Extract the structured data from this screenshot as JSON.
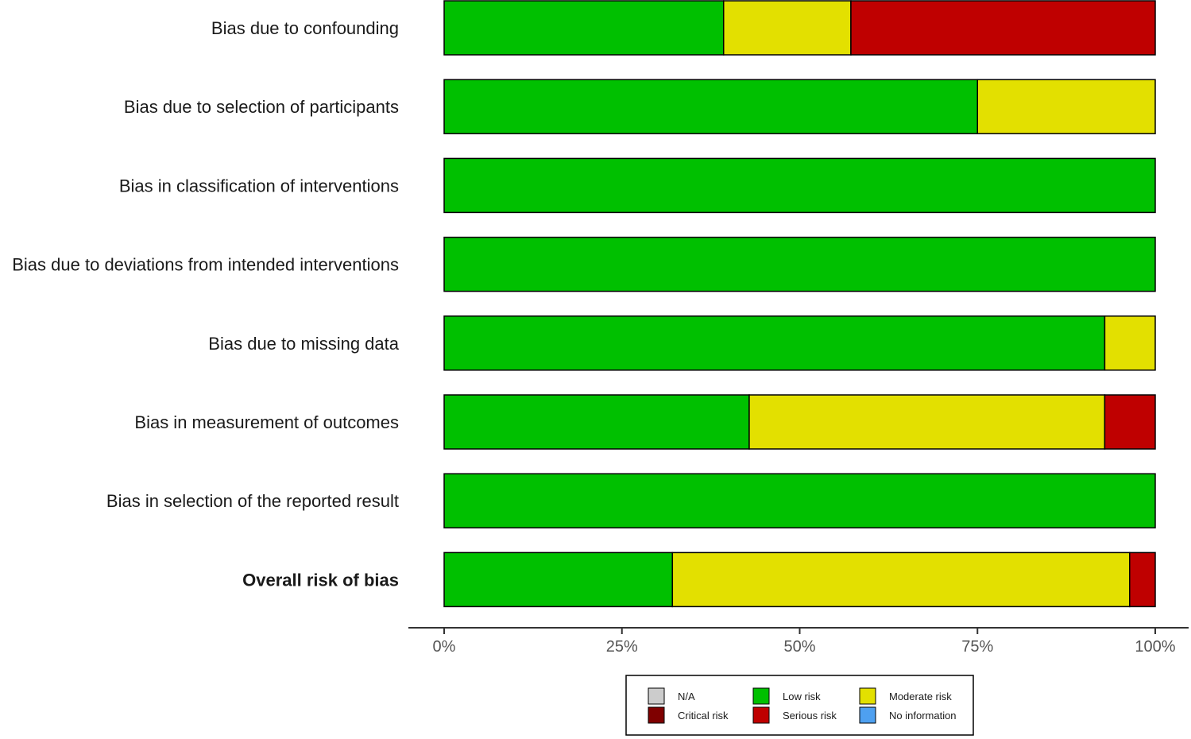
{
  "chart_data": {
    "type": "bar",
    "orientation": "horizontal",
    "stacked": true,
    "normalized": true,
    "categories": [
      "Bias due to confounding",
      "Bias due to selection of participants",
      "Bias in classification of interventions",
      "Bias due to deviations from intended interventions",
      "Bias due to missing data",
      "Bias in measurement of outcomes",
      "Bias in selection of the reported result",
      "Overall risk of bias"
    ],
    "bold_categories": [
      "Overall risk of bias"
    ],
    "series": [
      {
        "name": "Low risk",
        "color": "#00c000",
        "values": [
          39.3,
          75.0,
          100,
          100,
          92.9,
          42.9,
          100,
          32.1
        ]
      },
      {
        "name": "Moderate risk",
        "color": "#e3e000",
        "values": [
          17.9,
          25.0,
          0,
          0,
          7.1,
          50.0,
          0,
          64.3
        ]
      },
      {
        "name": "Serious risk",
        "color": "#bf0000",
        "values": [
          42.8,
          0,
          0,
          0,
          0,
          7.1,
          0,
          3.6
        ]
      },
      {
        "name": "Critical risk",
        "color": "#7f0000",
        "values": [
          0,
          0,
          0,
          0,
          0,
          0,
          0,
          0
        ]
      },
      {
        "name": "No information",
        "color": "#4ea0f0",
        "values": [
          0,
          0,
          0,
          0,
          0,
          0,
          0,
          0
        ]
      },
      {
        "name": "N/A",
        "color": "#cccccc",
        "values": [
          0,
          0,
          0,
          0,
          0,
          0,
          0,
          0
        ]
      }
    ],
    "xlim": [
      0,
      100
    ],
    "x_ticks": [
      0,
      25,
      50,
      75,
      100
    ],
    "x_tick_labels": [
      "0%",
      "25%",
      "50%",
      "75%",
      "100%"
    ],
    "xlabel": "",
    "ylabel": "",
    "grid": false,
    "legend": {
      "placement": "bottom-center",
      "entries": [
        {
          "label": "N/A",
          "color": "#cccccc"
        },
        {
          "label": "Low risk",
          "color": "#00c000"
        },
        {
          "label": "Moderate risk",
          "color": "#e3e000"
        },
        {
          "label": "Critical risk",
          "color": "#7f0000"
        },
        {
          "label": "Serious risk",
          "color": "#bf0000"
        },
        {
          "label": "No information",
          "color": "#4ea0f0"
        }
      ]
    }
  }
}
